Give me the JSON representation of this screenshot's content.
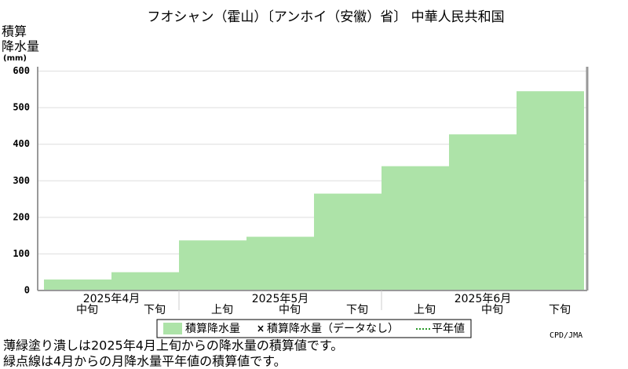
{
  "chart_data": {
    "type": "bar",
    "title": "フオシャン（霍山）〔アンホイ（安徽）省〕 中華人民共和国",
    "ylabel": [
      "積算",
      "降水量",
      "(mm)"
    ],
    "category_groups": [
      {
        "label": "2025年4月",
        "categories": [
          "中旬",
          "下旬"
        ]
      },
      {
        "label": "2025年5月",
        "categories": [
          "上旬",
          "中旬",
          "下旬"
        ]
      },
      {
        "label": "2025年6月",
        "categories": [
          "上旬",
          "中旬",
          "下旬"
        ]
      }
    ],
    "series": [
      {
        "name": "積算降水量",
        "color": "#ade3a8",
        "values": [
          30,
          50,
          137,
          147,
          265,
          340,
          427,
          545
        ]
      }
    ],
    "legend_extra": [
      "積算降水量（データなし）",
      "平年値"
    ],
    "ylim": [
      0,
      612
    ],
    "yticks": [
      0,
      100,
      200,
      300,
      400,
      500,
      600
    ],
    "grid": true,
    "credit": "CPD/JMA",
    "notes": [
      "薄緑塗り潰しは2025年4月上旬からの降水量の積算値です。",
      "緑点線は4月からの月降水量平年値の積算値です。"
    ]
  }
}
